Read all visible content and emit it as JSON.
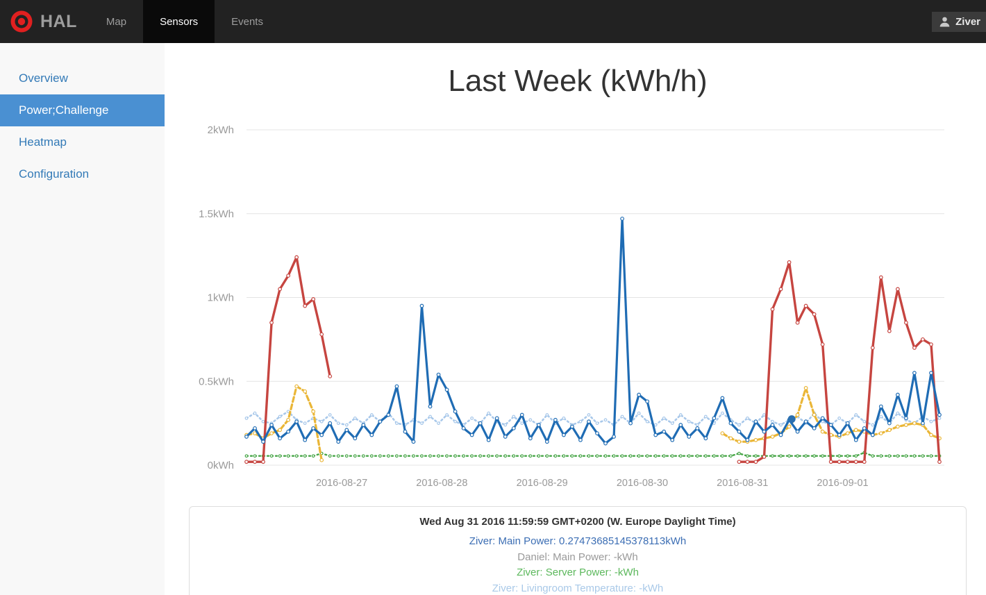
{
  "navbar": {
    "brand": "HAL",
    "items": [
      {
        "label": "Map",
        "active": false
      },
      {
        "label": "Sensors",
        "active": true
      },
      {
        "label": "Events",
        "active": false
      }
    ],
    "user": "Ziver"
  },
  "sidebar": {
    "items": [
      {
        "label": "Overview",
        "active": false
      },
      {
        "label": "Power;Challenge",
        "active": true
      },
      {
        "label": "Heatmap",
        "active": false
      },
      {
        "label": "Configuration",
        "active": false
      }
    ]
  },
  "main": {
    "title": "Last Week (kWh/h)"
  },
  "tooltip": {
    "timestamp": "Wed Aug 31 2016 11:59:59 GMT+0200 (W. Europe Daylight Time)",
    "entries": [
      {
        "label": "Ziver: Main Power",
        "value": "0.27473685145378113kWh",
        "color": "#3c6eb4"
      },
      {
        "label": "Daniel: Main Power",
        "value": "-kWh",
        "color": "#999999"
      },
      {
        "label": "Ziver: Server Power",
        "value": "-kWh",
        "color": "#5cb85c"
      },
      {
        "label": "Ziver: Livingroom Temperature",
        "value": "-kWh",
        "color": "#a9c9e8"
      }
    ]
  },
  "colors": {
    "navbar_bg": "#222222",
    "navbar_active_bg": "#0a0a0a",
    "sidebar_active_bg": "#4a90d2",
    "link_color": "#337ab7",
    "logo_red": "#e02020"
  },
  "chart_data": {
    "type": "line",
    "title": "Last Week (kWh/h)",
    "xlabel": "",
    "ylabel": "",
    "ylim": [
      0,
      2
    ],
    "grid": true,
    "legend_position": "none",
    "y_ticks": [
      {
        "value": 0,
        "label": "0kWh"
      },
      {
        "value": 0.5,
        "label": "0.5kWh"
      },
      {
        "value": 1,
        "label": "1kWh"
      },
      {
        "value": 1.5,
        "label": "1.5kWh"
      },
      {
        "value": 2,
        "label": "2kWh"
      }
    ],
    "x_unit": "hours",
    "x_step_hours": 2,
    "x_total_hours": 166,
    "x_first_tick_hours": 22.8,
    "x_tick_interval_hours": 24,
    "x_tick_labels": [
      "2016-08-27",
      "2016-08-28",
      "2016-08-29",
      "2016-08-30",
      "2016-08-31",
      "2016-09-01"
    ],
    "series": [
      {
        "name": "Ziver: Livingroom Temperature",
        "color": "#a8c8ea",
        "width": 2.6,
        "dash": "2 4",
        "marker": 1.8,
        "values": [
          0.28,
          0.31,
          0.26,
          0.25,
          0.29,
          0.32,
          0.27,
          0.25,
          0.28,
          0.26,
          0.3,
          0.25,
          0.24,
          0.28,
          0.25,
          0.3,
          0.26,
          0.31,
          0.25,
          0.24,
          0.27,
          0.25,
          0.29,
          0.25,
          0.3,
          0.26,
          0.24,
          0.28,
          0.25,
          0.31,
          0.26,
          0.24,
          0.29,
          0.25,
          0.27,
          0.24,
          0.3,
          0.25,
          0.28,
          0.24,
          0.26,
          0.3,
          0.25,
          0.27,
          0.24,
          0.29,
          0.25,
          0.31,
          0.26,
          0.24,
          0.28,
          0.25,
          0.3,
          0.26,
          0.24,
          0.29,
          0.25,
          0.31,
          0.27,
          0.24,
          0.28,
          0.25,
          0.3,
          0.26,
          0.24,
          0.27,
          0.29,
          0.25,
          0.31,
          0.26,
          0.24,
          0.28,
          0.25,
          0.3,
          0.26,
          0.24,
          0.29,
          0.25,
          0.31,
          0.27,
          0.25,
          0.29,
          0.26,
          0.28
        ]
      },
      {
        "name": "Ziver: Server Power",
        "color": "#46a546",
        "width": 2.4,
        "dash": "2 4",
        "marker": 1.8,
        "values": [
          0.055,
          0.055,
          0.055,
          0.055,
          0.055,
          0.055,
          0.055,
          0.055,
          0.055,
          0.07,
          0.055,
          0.055,
          0.055,
          0.055,
          0.055,
          0.055,
          0.055,
          0.055,
          0.055,
          0.055,
          0.055,
          0.055,
          0.055,
          0.055,
          0.055,
          0.055,
          0.055,
          0.055,
          0.055,
          0.055,
          0.055,
          0.055,
          0.055,
          0.055,
          0.055,
          0.055,
          0.055,
          0.055,
          0.055,
          0.055,
          0.055,
          0.055,
          0.055,
          0.055,
          0.055,
          0.055,
          0.055,
          0.055,
          0.055,
          0.055,
          0.055,
          0.055,
          0.055,
          0.055,
          0.055,
          0.055,
          0.055,
          0.055,
          0.055,
          0.07,
          0.055,
          0.055,
          0.055,
          0.055,
          0.055,
          0.055,
          0.055,
          0.055,
          0.055,
          0.055,
          0.055,
          0.055,
          0.055,
          0.055,
          0.075,
          0.055,
          0.055,
          0.055,
          0.055,
          0.055,
          0.055,
          0.055,
          0.055,
          0.055
        ]
      },
      {
        "name": "(unlabeled yellow series)",
        "color": "#eab637",
        "width": 3.2,
        "dash": "7 4",
        "marker": 2.3,
        "values": [
          0.18,
          0.19,
          0.16,
          0.19,
          0.21,
          0.27,
          0.47,
          0.44,
          0.32,
          0.03,
          null,
          null,
          null,
          null,
          null,
          null,
          null,
          null,
          null,
          null,
          null,
          null,
          null,
          null,
          null,
          null,
          null,
          null,
          null,
          null,
          null,
          null,
          null,
          null,
          null,
          null,
          null,
          null,
          null,
          null,
          null,
          null,
          null,
          null,
          null,
          null,
          null,
          null,
          null,
          null,
          null,
          null,
          null,
          null,
          null,
          null,
          null,
          0.19,
          0.16,
          0.14,
          0.14,
          0.15,
          0.16,
          0.17,
          0.19,
          0.23,
          0.3,
          0.46,
          0.3,
          0.2,
          0.18,
          0.17,
          0.19,
          0.21,
          0.2,
          0.18,
          0.19,
          0.21,
          0.23,
          0.24,
          0.25,
          0.24,
          0.18,
          0.16
        ]
      },
      {
        "name": "Daniel: Main Power",
        "color": "#c64540",
        "width": 3.4,
        "dash": null,
        "marker": 2.3,
        "values": [
          0.02,
          0.02,
          0.02,
          0.85,
          1.05,
          1.13,
          1.24,
          0.95,
          0.99,
          0.78,
          0.53,
          null,
          null,
          null,
          null,
          null,
          null,
          null,
          null,
          null,
          null,
          null,
          null,
          null,
          null,
          null,
          null,
          null,
          null,
          null,
          null,
          null,
          null,
          null,
          null,
          null,
          null,
          null,
          null,
          null,
          null,
          null,
          null,
          null,
          null,
          null,
          null,
          null,
          null,
          null,
          null,
          null,
          null,
          null,
          null,
          null,
          null,
          null,
          null,
          0.02,
          0.02,
          0.02,
          0.05,
          0.93,
          1.05,
          1.21,
          0.85,
          0.95,
          0.9,
          0.72,
          0.02,
          0.02,
          0.02,
          0.02,
          0.02,
          0.7,
          1.12,
          0.8,
          1.05,
          0.85,
          0.7,
          0.75,
          0.72,
          0.02
        ]
      },
      {
        "name": "Ziver: Main Power",
        "color": "#1f6cb4",
        "width": 3.2,
        "dash": null,
        "marker": 2.3,
        "values": [
          0.17,
          0.22,
          0.14,
          0.24,
          0.16,
          0.2,
          0.26,
          0.15,
          0.22,
          0.18,
          0.25,
          0.14,
          0.21,
          0.16,
          0.24,
          0.18,
          0.26,
          0.3,
          0.47,
          0.2,
          0.14,
          0.95,
          0.35,
          0.54,
          0.45,
          0.32,
          0.22,
          0.18,
          0.25,
          0.15,
          0.28,
          0.17,
          0.22,
          0.3,
          0.16,
          0.24,
          0.14,
          0.27,
          0.18,
          0.23,
          0.15,
          0.26,
          0.19,
          0.13,
          0.17,
          1.47,
          0.25,
          0.42,
          0.38,
          0.18,
          0.2,
          0.15,
          0.24,
          0.17,
          0.22,
          0.16,
          0.28,
          0.4,
          0.25,
          0.2,
          0.15,
          0.26,
          0.2,
          0.24,
          0.18,
          0.27,
          0.2,
          0.26,
          0.22,
          0.28,
          0.24,
          0.18,
          0.25,
          0.15,
          0.22,
          0.18,
          0.35,
          0.25,
          0.42,
          0.28,
          0.55,
          0.25,
          0.55,
          0.3
        ]
      }
    ],
    "hover_point": {
      "series": "Ziver: Main Power",
      "x_hours": 130.6,
      "value_kwh": 0.27473685145378113
    }
  }
}
